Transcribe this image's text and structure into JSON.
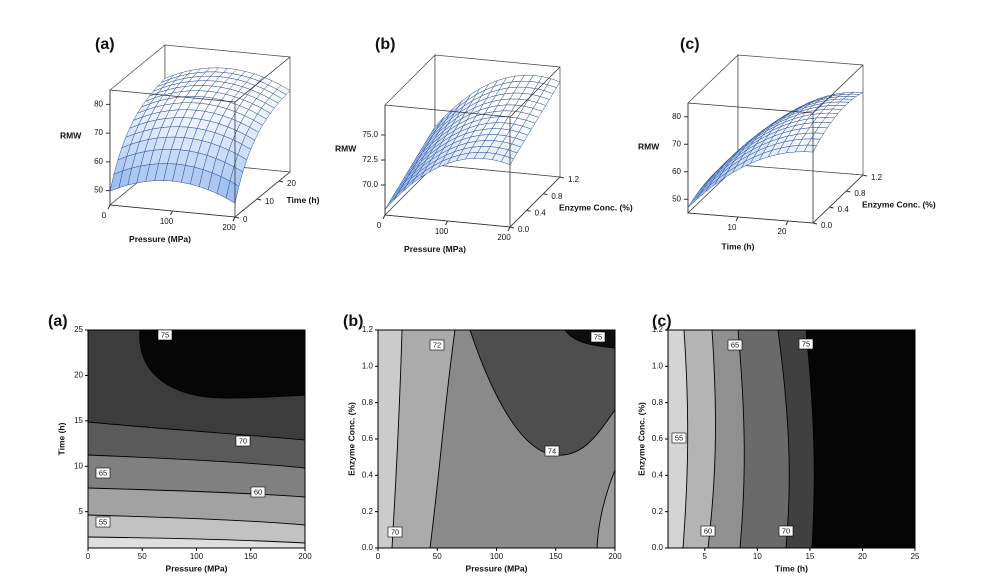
{
  "chart_data": [
    {
      "type": "surface3d",
      "panel_label": "(a)",
      "zlabel": "RMW",
      "xlabel": "Pressure (MPa)",
      "ylabel": "Time (h)",
      "xlim": [
        0,
        200
      ],
      "ylim": [
        0,
        25
      ],
      "zlim": [
        45,
        85
      ],
      "xticks": [
        0,
        100,
        200
      ],
      "yticks": [
        0,
        10,
        20
      ],
      "zticks": [
        50,
        60,
        70,
        80
      ]
    },
    {
      "type": "surface3d",
      "panel_label": "(b)",
      "zlabel": "RMW",
      "xlabel": "Pressure (MPa)",
      "ylabel": "Enzyme Conc. (%)",
      "xlim": [
        0,
        200
      ],
      "ylim": [
        0,
        1.2
      ],
      "zlim": [
        67,
        78
      ],
      "xticks": [
        0,
        100,
        200
      ],
      "yticks": [
        {
          "value": 0,
          "label": "0.0"
        },
        0.4,
        0.8,
        1.2
      ],
      "zticks": [
        {
          "value": 70,
          "label": "70.0"
        },
        72.5,
        {
          "value": 75,
          "label": "75.0"
        }
      ]
    },
    {
      "type": "surface3d",
      "panel_label": "(c)",
      "zlabel": "RMW",
      "xlabel": "Time (h)",
      "ylabel": "Enzyme Conc. (%)",
      "xlim": [
        0,
        25
      ],
      "ylim": [
        0,
        1.2
      ],
      "zlim": [
        45,
        85
      ],
      "xticks": [
        10,
        20
      ],
      "yticks": [
        {
          "value": 0,
          "label": "0.0"
        },
        0.4,
        0.8,
        1.2
      ],
      "zticks": [
        50,
        60,
        70,
        80
      ]
    },
    {
      "type": "contour",
      "panel_label": "(a)",
      "xlabel": "Pressure (MPa)",
      "ylabel": "Time (h)",
      "xlim": [
        0,
        200
      ],
      "ylim": [
        1,
        25
      ],
      "xticks": [
        0,
        50,
        100,
        150,
        200
      ],
      "yticks": [
        5,
        10,
        15,
        20,
        25
      ],
      "levels": [
        75,
        70,
        65,
        60,
        55
      ]
    },
    {
      "type": "contour",
      "panel_label": "(b)",
      "xlabel": "Pressure (MPa)",
      "ylabel": "Enzyme Conc. (%)",
      "xlim": [
        0,
        200
      ],
      "ylim": [
        0,
        1.2
      ],
      "xticks": [
        0,
        50,
        100,
        150,
        200
      ],
      "yticks": [
        {
          "value": 0,
          "label": "0.0"
        },
        0.2,
        0.4,
        0.6,
        0.8,
        {
          "value": 1,
          "label": "1.0"
        },
        1.2
      ],
      "levels": [
        72,
        75,
        74,
        70
      ]
    },
    {
      "type": "contour",
      "panel_label": "(c)",
      "xlabel": "Time (h)",
      "ylabel": "Enzyme Conc. (%)",
      "xlim": [
        1.5,
        25
      ],
      "ylim": [
        0,
        1.2
      ],
      "xticks": [
        5,
        10,
        15,
        20,
        25
      ],
      "yticks": [
        {
          "value": 0,
          "label": "0.0"
        },
        0.2,
        0.4,
        0.6,
        0.8,
        {
          "value": 1,
          "label": "1.0"
        },
        1.2
      ],
      "levels": [
        65,
        75,
        55,
        60,
        70
      ]
    }
  ]
}
